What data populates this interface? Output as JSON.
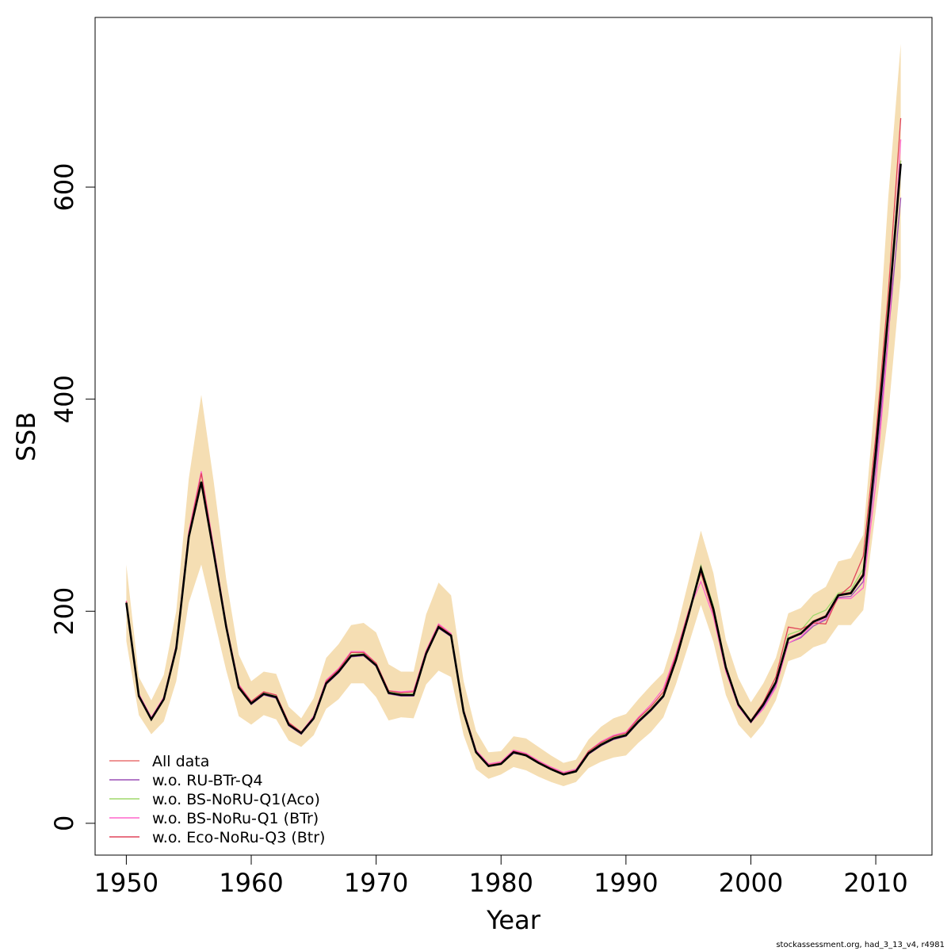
{
  "chart_data": {
    "type": "line",
    "xlabel": "Year",
    "ylabel": "SSB",
    "xlim": [
      1947.5,
      2014.5
    ],
    "ylim": [
      -30,
      760
    ],
    "xticks": [
      1950,
      1960,
      1970,
      1980,
      1990,
      2000,
      2010
    ],
    "yticks": [
      0,
      200,
      400,
      600
    ],
    "legend_position": "bottom-left",
    "band_color": "#f5deb3",
    "x": [
      1950,
      1951,
      1952,
      1953,
      1954,
      1955,
      1956,
      1957,
      1958,
      1959,
      1960,
      1961,
      1962,
      1963,
      1964,
      1965,
      1966,
      1967,
      1968,
      1969,
      1970,
      1971,
      1972,
      1973,
      1974,
      1975,
      1976,
      1977,
      1978,
      1979,
      1980,
      1981,
      1982,
      1983,
      1984,
      1985,
      1986,
      1987,
      1988,
      1989,
      1990,
      1991,
      1992,
      1993,
      1994,
      1995,
      1996,
      1997,
      1998,
      1999,
      2000,
      2001,
      2002,
      2003,
      2004,
      2005,
      2006,
      2007,
      2008,
      2009,
      2010,
      2011,
      2012
    ],
    "estimate": {
      "color": "#000000",
      "values": [
        208,
        120,
        98,
        117,
        165,
        270,
        322,
        255,
        185,
        128,
        113,
        122,
        119,
        93,
        85,
        99,
        132,
        143,
        158,
        159,
        149,
        123,
        121,
        121,
        160,
        185,
        177,
        105,
        67,
        54,
        56,
        67,
        64,
        57,
        51,
        46,
        49,
        66,
        74,
        80,
        83,
        96,
        107,
        120,
        154,
        196,
        240,
        202,
        147,
        112,
        96,
        112,
        133,
        174,
        179,
        190,
        195,
        215,
        217,
        234,
        350,
        480,
        622
      ]
    },
    "band": {
      "lower": [
        172,
        102,
        84,
        96,
        134,
        208,
        244,
        194,
        144,
        101,
        93,
        102,
        98,
        78,
        72,
        83,
        108,
        117,
        132,
        132,
        119,
        97,
        100,
        99,
        131,
        144,
        138,
        83,
        51,
        42,
        46,
        53,
        50,
        44,
        39,
        35,
        39,
        52,
        58,
        62,
        64,
        76,
        86,
        100,
        131,
        168,
        206,
        171,
        121,
        93,
        80,
        94,
        116,
        153,
        157,
        166,
        170,
        187,
        187,
        201,
        295,
        385,
        515
      ],
      "upper": [
        244,
        138,
        116,
        140,
        200,
        325,
        404,
        322,
        230,
        159,
        134,
        143,
        141,
        110,
        99,
        118,
        156,
        169,
        187,
        189,
        180,
        150,
        143,
        143,
        197,
        227,
        215,
        134,
        87,
        67,
        68,
        82,
        80,
        72,
        64,
        57,
        60,
        79,
        91,
        99,
        103,
        117,
        130,
        142,
        180,
        228,
        276,
        236,
        173,
        137,
        114,
        132,
        156,
        198,
        203,
        216,
        223,
        247,
        250,
        272,
        410,
        590,
        735
      ]
    },
    "series": [
      {
        "name": "All data",
        "color": "#e87272",
        "values": [
          209,
          121,
          99,
          118,
          166,
          271,
          323,
          256,
          186,
          129,
          114,
          123,
          120,
          94,
          85,
          100,
          133,
          144,
          159,
          160,
          150,
          124,
          122,
          122,
          161,
          186,
          177,
          106,
          68,
          55,
          57,
          68,
          65,
          58,
          52,
          47,
          50,
          67,
          75,
          81,
          84,
          97,
          108,
          121,
          155,
          197,
          241,
          203,
          148,
          113,
          97,
          113,
          134,
          175,
          180,
          191,
          196,
          216,
          218,
          236,
          353,
          485,
          625
        ]
      },
      {
        "name": "w.o. RU-BTr-Q4",
        "color": "#9a4fb5",
        "values": [
          207,
          120,
          98,
          117,
          164,
          269,
          320,
          254,
          184,
          128,
          112,
          121,
          118,
          92,
          84,
          98,
          131,
          142,
          157,
          158,
          148,
          122,
          120,
          120,
          159,
          184,
          176,
          104,
          67,
          54,
          56,
          66,
          64,
          57,
          51,
          46,
          49,
          65,
          73,
          79,
          82,
          95,
          106,
          119,
          153,
          195,
          239,
          201,
          146,
          111,
          95,
          110,
          130,
          170,
          175,
          186,
          192,
          213,
          214,
          228,
          335,
          460,
          590
        ]
      },
      {
        "name": "w.o. BS-NoRU-Q1(Aco)",
        "color": "#9fd96b",
        "values": [
          208,
          121,
          99,
          118,
          166,
          271,
          323,
          255,
          186,
          129,
          114,
          123,
          120,
          94,
          85,
          100,
          133,
          144,
          159,
          160,
          150,
          124,
          122,
          122,
          161,
          186,
          177,
          106,
          68,
          55,
          57,
          68,
          65,
          58,
          52,
          47,
          50,
          67,
          75,
          81,
          84,
          97,
          108,
          121,
          155,
          197,
          243,
          205,
          148,
          113,
          97,
          112,
          133,
          178,
          182,
          196,
          201,
          217,
          220,
          240,
          355,
          490,
          625
        ]
      },
      {
        "name": "w.o. BS-NoRu-Q1 (BTr)",
        "color": "#ff66cc",
        "values": [
          210,
          122,
          100,
          119,
          168,
          275,
          332,
          260,
          188,
          131,
          115,
          124,
          121,
          95,
          86,
          101,
          135,
          146,
          162,
          162,
          151,
          125,
          124,
          125,
          163,
          188,
          179,
          107,
          69,
          56,
          58,
          69,
          66,
          59,
          53,
          48,
          51,
          68,
          77,
          83,
          86,
          100,
          112,
          127,
          160,
          200,
          228,
          195,
          143,
          110,
          95,
          108,
          128,
          170,
          176,
          188,
          193,
          212,
          212,
          222,
          320,
          455,
          645
        ]
      },
      {
        "name": "w.o. Eco-NoRu-Q3 (Btr)",
        "color": "#e0455a",
        "values": [
          209,
          121,
          99,
          118,
          167,
          273,
          330,
          258,
          187,
          130,
          115,
          124,
          121,
          95,
          86,
          100,
          134,
          145,
          161,
          161,
          151,
          125,
          123,
          124,
          162,
          187,
          178,
          107,
          68,
          55,
          57,
          68,
          65,
          58,
          52,
          47,
          50,
          68,
          76,
          82,
          85,
          99,
          110,
          124,
          158,
          199,
          236,
          198,
          145,
          112,
          97,
          114,
          138,
          185,
          183,
          189,
          188,
          214,
          224,
          252,
          365,
          500,
          665
        ]
      }
    ]
  },
  "footnote": "stockassessment.org, had_3_13_v4, r4981"
}
